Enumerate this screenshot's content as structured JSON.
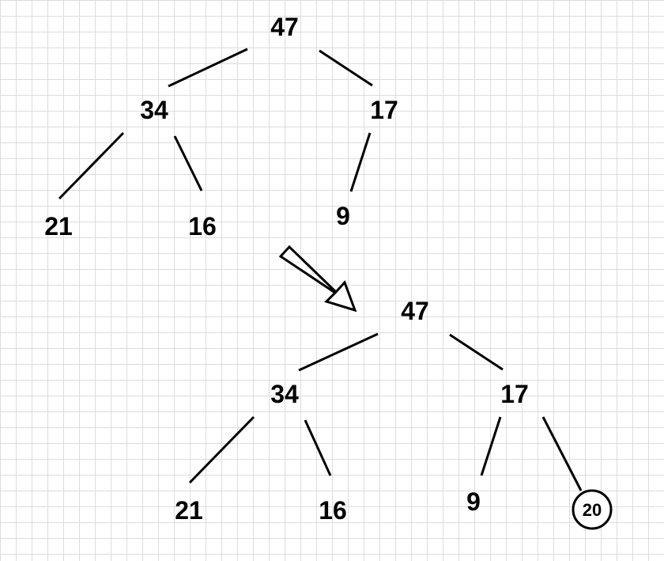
{
  "before_tree": {
    "root": "47",
    "root_left": "34",
    "root_right": "17",
    "left_left": "21",
    "left_right": "16",
    "right_left": "9"
  },
  "after_tree": {
    "root": "47",
    "root_left": "34",
    "root_right": "17",
    "left_left": "21",
    "left_right": "16",
    "right_left": "9",
    "right_right_new": "20"
  },
  "colors": {
    "ink": "#000000",
    "grid": "#dcdcdc",
    "background": "#ffffff"
  }
}
